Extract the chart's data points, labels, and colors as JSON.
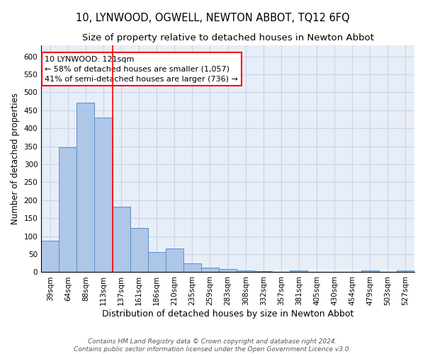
{
  "title": "10, LYNWOOD, OGWELL, NEWTON ABBOT, TQ12 6FQ",
  "subtitle": "Size of property relative to detached houses in Newton Abbot",
  "xlabel": "Distribution of detached houses by size in Newton Abbot",
  "ylabel": "Number of detached properties",
  "categories": [
    "39sqm",
    "64sqm",
    "88sqm",
    "113sqm",
    "137sqm",
    "161sqm",
    "186sqm",
    "210sqm",
    "235sqm",
    "259sqm",
    "283sqm",
    "308sqm",
    "332sqm",
    "357sqm",
    "381sqm",
    "405sqm",
    "430sqm",
    "454sqm",
    "479sqm",
    "503sqm",
    "527sqm"
  ],
  "values": [
    88,
    348,
    472,
    430,
    183,
    122,
    57,
    65,
    25,
    12,
    8,
    5,
    2,
    0,
    5,
    0,
    0,
    0,
    5,
    0,
    5
  ],
  "bar_color": "#aec6e8",
  "bar_edge_color": "#5b8ec4",
  "red_line_x": 3.5,
  "annotation_line1": "10 LYNWOOD: 121sqm",
  "annotation_line2": "← 58% of detached houses are smaller (1,057)",
  "annotation_line3": "41% of semi-detached houses are larger (736) →",
  "annotation_box_color": "white",
  "annotation_box_edge_color": "red",
  "ylim": [
    0,
    630
  ],
  "yticks": [
    0,
    50,
    100,
    150,
    200,
    250,
    300,
    350,
    400,
    450,
    500,
    550,
    600
  ],
  "footer_line1": "Contains HM Land Registry data © Crown copyright and database right 2024.",
  "footer_line2": "Contains public sector information licensed under the Open Government Licence v3.0.",
  "grid_color": "#c8d4e8",
  "background_color": "#e8eef8",
  "title_fontsize": 10.5,
  "subtitle_fontsize": 9.5,
  "xlabel_fontsize": 9,
  "ylabel_fontsize": 8.5,
  "tick_fontsize": 7.5,
  "annotation_fontsize": 8,
  "footer_fontsize": 6.5
}
